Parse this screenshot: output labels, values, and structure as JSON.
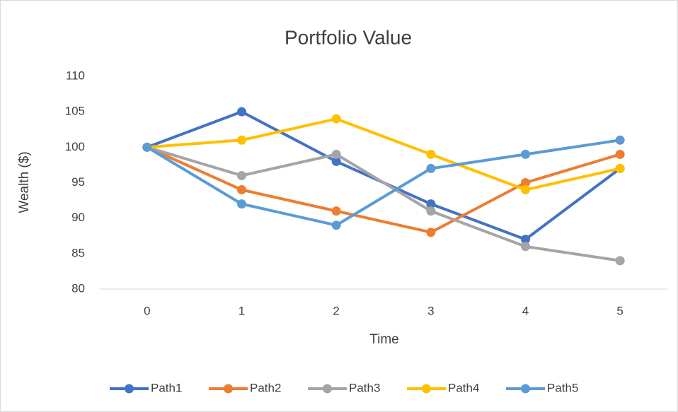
{
  "chart_data": {
    "type": "line",
    "title": "Portfolio Value",
    "x_label": "Time",
    "y_label": "Wealth ($)",
    "categories": [
      "0",
      "1",
      "2",
      "3",
      "4",
      "5"
    ],
    "series": [
      {
        "name": "Path1",
        "color": "#4472c4",
        "values": [
          100,
          105,
          98,
          92,
          87,
          97
        ]
      },
      {
        "name": "Path2",
        "color": "#ed7d31",
        "values": [
          100,
          94,
          91,
          88,
          95,
          99
        ]
      },
      {
        "name": "Path3",
        "color": "#a5a5a5",
        "values": [
          100,
          96,
          99,
          91,
          86,
          84
        ]
      },
      {
        "name": "Path4",
        "color": "#ffc000",
        "values": [
          100,
          101,
          104,
          99,
          94,
          97
        ]
      },
      {
        "name": "Path5",
        "color": "#5b9bd5",
        "values": [
          100,
          92,
          89,
          97,
          99,
          101
        ]
      }
    ],
    "ylim": [
      80,
      110
    ],
    "yticks": [
      80,
      85,
      90,
      95,
      100,
      105,
      110
    ],
    "grid": false,
    "legend": "bottom"
  }
}
